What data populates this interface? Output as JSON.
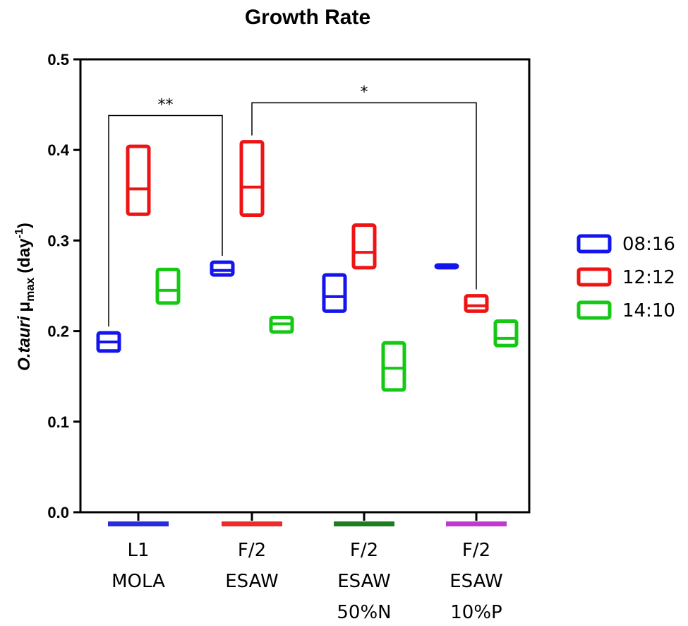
{
  "chart_data": {
    "type": "box",
    "title": "Growth Rate",
    "ylabel": {
      "main": "O.tauri",
      "mu": "μ",
      "sub": "max",
      "unit_open": "(day",
      "sup": "-1",
      "unit_close": ")"
    },
    "ylim": [
      0,
      0.5
    ],
    "yticks": [
      "0.0",
      "0.1",
      "0.2",
      "0.3",
      "0.4",
      "0.5"
    ],
    "categories": [
      {
        "lines": [
          "L1",
          "MOLA"
        ],
        "bar_color": "#2a2ae0"
      },
      {
        "lines": [
          "F/2",
          "ESAW"
        ],
        "bar_color": "#ee2a2a"
      },
      {
        "lines": [
          "F/2",
          "ESAW",
          "50%N"
        ],
        "bar_color": "#1e7d1e"
      },
      {
        "lines": [
          "F/2",
          "ESAW",
          "10%P"
        ],
        "bar_color": "#c03ad0"
      }
    ],
    "series": [
      {
        "name": "08:16",
        "color": "#1414ee",
        "boxes": [
          {
            "min": 0.178,
            "median": 0.188,
            "max": 0.198
          },
          {
            "min": 0.262,
            "median": 0.267,
            "max": 0.276
          },
          {
            "min": 0.222,
            "median": 0.238,
            "max": 0.262
          },
          {
            "min": 0.27,
            "median": 0.271,
            "max": 0.273
          }
        ]
      },
      {
        "name": "12:12",
        "color": "#ee1414",
        "boxes": [
          {
            "min": 0.329,
            "median": 0.357,
            "max": 0.404
          },
          {
            "min": 0.328,
            "median": 0.359,
            "max": 0.409
          },
          {
            "min": 0.27,
            "median": 0.287,
            "max": 0.317
          },
          {
            "min": 0.222,
            "median": 0.228,
            "max": 0.239
          }
        ]
      },
      {
        "name": "14:10",
        "color": "#14c814",
        "boxes": [
          {
            "min": 0.231,
            "median": 0.245,
            "max": 0.268
          },
          {
            "min": 0.199,
            "median": 0.208,
            "max": 0.215
          },
          {
            "min": 0.135,
            "median": 0.159,
            "max": 0.187
          },
          {
            "min": 0.184,
            "median": 0.192,
            "max": 0.211
          }
        ]
      }
    ],
    "significance": [
      {
        "label": "**",
        "from_category": 0,
        "to_category": 1,
        "from_series": 0,
        "to_series": 0,
        "height": 0.438
      },
      {
        "label": "*",
        "from_category": 1,
        "to_category": 3,
        "from_series": 1,
        "to_series": 1,
        "height": 0.452
      }
    ],
    "legend_position": "right"
  }
}
